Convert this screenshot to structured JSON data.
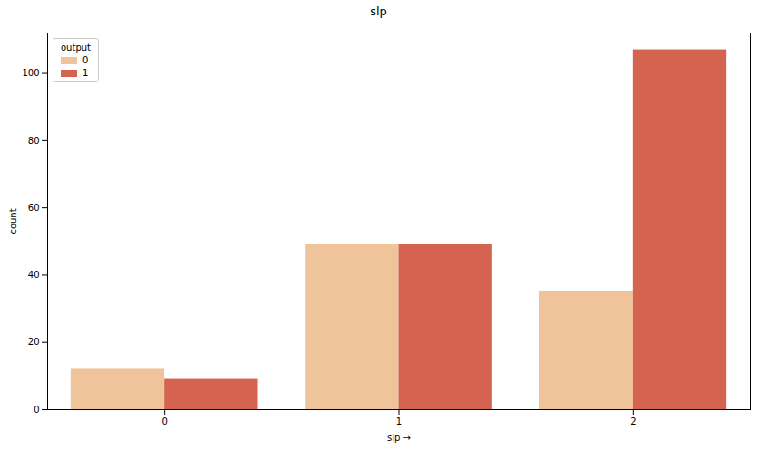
{
  "chart_data": {
    "type": "bar",
    "title": "slp",
    "x_label": "slp",
    "y_label": "count",
    "categories": [
      "0",
      "1",
      "2"
    ],
    "series": [
      {
        "name": "0",
        "color": "#f0c49a",
        "values": [
          12,
          49,
          35
        ]
      },
      {
        "name": "1",
        "color": "#d46350",
        "values": [
          9,
          49,
          107
        ]
      }
    ],
    "legend_title": "output",
    "legend": "upper left",
    "ylim": [
      0,
      112
    ],
    "yticks": [
      0,
      20,
      40,
      60,
      80,
      100
    ],
    "grid": false
  }
}
